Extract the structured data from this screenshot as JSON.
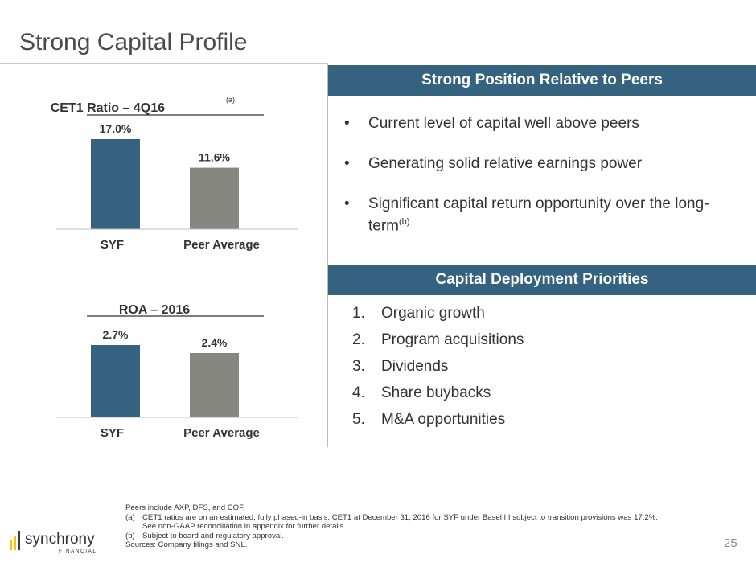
{
  "slide": {
    "title": "Strong Capital Profile",
    "page_number": "25",
    "accent_color": "#34627f"
  },
  "chart_data": [
    {
      "type": "bar",
      "title": "CET1 Ratio – 4Q16",
      "title_footnote": "(a)",
      "categories": [
        "SYF",
        "Peer Average"
      ],
      "values": [
        17.0,
        11.6
      ],
      "value_labels": [
        "17.0%",
        "11.6%"
      ],
      "colors": [
        "#34627f",
        "#878782"
      ],
      "ylim": [
        0,
        17.0
      ],
      "grid": false,
      "legend": "none"
    },
    {
      "type": "bar",
      "title": "ROA – 2016",
      "categories": [
        "SYF",
        "Peer Average"
      ],
      "values": [
        2.7,
        2.4
      ],
      "value_labels": [
        "2.7%",
        "2.4%"
      ],
      "colors": [
        "#34627f",
        "#878782"
      ],
      "ylim": [
        0,
        2.7
      ],
      "grid": false,
      "legend": "none"
    }
  ],
  "right_panel": {
    "peers_header": "Strong Position Relative to Peers",
    "bullets": [
      {
        "text": "Current level of capital well above peers",
        "sup": ""
      },
      {
        "text": "Generating solid relative earnings power",
        "sup": ""
      },
      {
        "text": "Significant capital return opportunity over the long-term",
        "sup": "(b)"
      }
    ],
    "bullet_glyph": "•",
    "priorities_header": "Capital Deployment Priorities",
    "priorities": [
      {
        "num": "1.",
        "text": "Organic growth"
      },
      {
        "num": "2.",
        "text": "Program acquisitions"
      },
      {
        "num": "3.",
        "text": "Dividends"
      },
      {
        "num": "4.",
        "text": "Share buybacks"
      },
      {
        "num": "5.",
        "text": "M&A opportunities"
      }
    ]
  },
  "footnotes": {
    "peers_note": "Peers include AXP, DFS, and COF.",
    "note_a_marker": "(a)",
    "note_a": "CET1 ratios are on an estimated, fully phased-in basis. CET1 at December 31, 2016 for SYF under Basel III subject to transition provisions was 17.2%.",
    "note_a_cont": "See non-GAAP reconciliation in appendix for further details.",
    "note_b_marker": "(b)",
    "note_b": "Subject to board and regulatory approval.",
    "sources": "Sources: Company filings and SNL."
  },
  "logo": {
    "name": "synchrony",
    "sub": "FINANCIAL",
    "icon_colors": [
      "#fbc600",
      "#3b3b3b"
    ]
  }
}
